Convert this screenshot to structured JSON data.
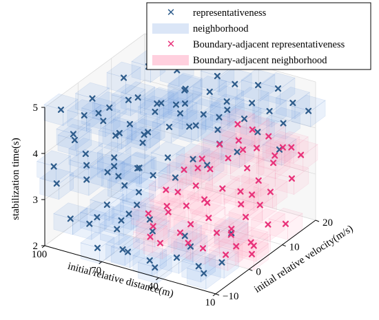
{
  "chart_data": {
    "type": "scatter",
    "projection": "3d",
    "axes": {
      "x": {
        "label": "initial relative distance(m)",
        "range": [
          10,
          100
        ],
        "ticks": [
          "100",
          "70",
          "40",
          "10"
        ]
      },
      "y": {
        "label": "initial relative velocity(m/s)",
        "range": [
          -10,
          20
        ],
        "ticks": [
          "-10",
          "0",
          "10",
          "20"
        ]
      },
      "z": {
        "label": "stabilization time(s)",
        "range": [
          2,
          5
        ],
        "ticks": [
          "2",
          "3",
          "4",
          "5"
        ]
      }
    },
    "grid": true,
    "legend": {
      "placement": "top-right",
      "entries": [
        {
          "label": "representativeness",
          "marker": "x",
          "color": "#2f5d8c"
        },
        {
          "label": "neighborhood",
          "marker": "patch",
          "color": "#dbe6f7"
        },
        {
          "label": "Boundary-adjacent representativeness",
          "marker": "x",
          "color": "#e8337a"
        },
        {
          "label": "Boundary-adjacent neighborhood",
          "marker": "patch",
          "color": "#ffd0de"
        }
      ]
    },
    "colors": {
      "representativeness": "#2f5d8c",
      "neighborhood": "#7ea7e8",
      "boundary_representativeness": "#e8337a",
      "boundary_neighborhood": "#ffb0c8"
    },
    "series": [
      {
        "name": "representativeness",
        "points": [
          [
            95,
            -8,
            4.9
          ],
          [
            88,
            -5,
            4.7
          ],
          [
            80,
            -2,
            4.8
          ],
          [
            72,
            2,
            4.9
          ],
          [
            65,
            5,
            4.7
          ],
          [
            58,
            8,
            4.9
          ],
          [
            50,
            11,
            4.8
          ],
          [
            42,
            14,
            4.9
          ],
          [
            35,
            17,
            4.8
          ],
          [
            28,
            19,
            4.7
          ],
          [
            96,
            2,
            4.6
          ],
          [
            90,
            8,
            4.8
          ],
          [
            84,
            12,
            4.9
          ],
          [
            76,
            16,
            4.7
          ],
          [
            68,
            -7,
            4.6
          ],
          [
            60,
            -3,
            4.5
          ],
          [
            52,
            0,
            4.6
          ],
          [
            45,
            4,
            4.5
          ],
          [
            38,
            7,
            4.6
          ],
          [
            30,
            10,
            4.5
          ],
          [
            22,
            13,
            4.6
          ],
          [
            15,
            16,
            4.7
          ],
          [
            92,
            -6,
            4.3
          ],
          [
            85,
            -1,
            4.4
          ],
          [
            78,
            3,
            4.2
          ],
          [
            70,
            6,
            4.4
          ],
          [
            62,
            9,
            4.3
          ],
          [
            55,
            12,
            4.2
          ],
          [
            48,
            15,
            4.4
          ],
          [
            40,
            18,
            4.3
          ],
          [
            33,
            -9,
            4.2
          ],
          [
            25,
            -4,
            4.3
          ],
          [
            18,
            1,
            4.4
          ],
          [
            98,
            5,
            4.1
          ],
          [
            91,
            10,
            4.2
          ],
          [
            83,
            14,
            4.0
          ],
          [
            75,
            18,
            4.2
          ],
          [
            67,
            -8,
            4.0
          ],
          [
            59,
            -5,
            3.9
          ],
          [
            51,
            -1,
            4.0
          ],
          [
            43,
            2,
            3.9
          ],
          [
            36,
            6,
            4.1
          ],
          [
            97,
            -9,
            3.7
          ],
          [
            89,
            -4,
            3.8
          ],
          [
            81,
            0,
            3.6
          ],
          [
            73,
            4,
            3.8
          ],
          [
            65,
            -6,
            3.5
          ],
          [
            57,
            -2,
            3.6
          ],
          [
            94,
            9,
            3.5
          ],
          [
            86,
            13,
            3.4
          ],
          [
            99,
            -7,
            3.2
          ],
          [
            92,
            -2,
            3.1
          ],
          [
            84,
            3,
            3.0
          ],
          [
            76,
            -5,
            2.9
          ],
          [
            68,
            0,
            3.0
          ],
          [
            95,
            6,
            2.8
          ],
          [
            88,
            11,
            2.7
          ],
          [
            80,
            -8,
            2.6
          ],
          [
            72,
            -3,
            2.5
          ],
          [
            64,
            1,
            2.4
          ],
          [
            97,
            -4,
            2.3
          ],
          [
            90,
            0,
            2.2
          ],
          [
            82,
            5,
            2.1
          ],
          [
            74,
            -9,
            2.2
          ],
          [
            66,
            -6,
            2.1
          ],
          [
            58,
            -9,
            2.3
          ],
          [
            50,
            -7,
            2.1
          ],
          [
            42,
            -10,
            2.2
          ],
          [
            34,
            -8,
            2.4
          ],
          [
            26,
            -6,
            2.2
          ],
          [
            18,
            -9,
            2.3
          ],
          [
            12,
            -7,
            2.5
          ],
          [
            14,
            -3,
            2.9
          ],
          [
            20,
            16,
            4.2
          ],
          [
            12,
            19,
            4.4
          ],
          [
            15,
            12,
            3.9
          ],
          [
            60,
            19,
            4.6
          ],
          [
            70,
            15,
            4.1
          ],
          [
            80,
            18,
            3.8
          ],
          [
            55,
            -8,
            3.3
          ],
          [
            45,
            -9,
            2.9
          ],
          [
            35,
            -5,
            2.7
          ],
          [
            25,
            -9,
            2.8
          ],
          [
            86,
            -9,
            4.4
          ],
          [
            78,
            -10,
            4.0
          ],
          [
            66,
            14,
            3.7
          ],
          [
            53,
            18,
            4.0
          ],
          [
            44,
            10,
            4.1
          ],
          [
            30,
            14,
            4.0
          ],
          [
            62,
            -10,
            2.8
          ]
        ]
      },
      {
        "name": "Boundary-adjacent representativeness",
        "points": [
          [
            40,
            14,
            3.7
          ],
          [
            34,
            16,
            3.5
          ],
          [
            28,
            18,
            3.3
          ],
          [
            22,
            17,
            3.6
          ],
          [
            16,
            19,
            3.4
          ],
          [
            12,
            14,
            3.2
          ],
          [
            18,
            11,
            3.0
          ],
          [
            26,
            12,
            3.1
          ],
          [
            32,
            10,
            2.9
          ],
          [
            38,
            8,
            3.0
          ],
          [
            44,
            6,
            2.8
          ],
          [
            50,
            4,
            2.7
          ],
          [
            56,
            2,
            2.6
          ],
          [
            62,
            5,
            2.5
          ],
          [
            48,
            10,
            3.2
          ],
          [
            42,
            12,
            3.4
          ],
          [
            36,
            13,
            3.6
          ],
          [
            30,
            9,
            2.7
          ],
          [
            24,
            7,
            2.6
          ],
          [
            20,
            9,
            2.8
          ],
          [
            14,
            8,
            2.5
          ],
          [
            10,
            11,
            2.4
          ],
          [
            52,
            8,
            2.9
          ],
          [
            58,
            6,
            2.8
          ],
          [
            46,
            3,
            2.4
          ],
          [
            40,
            5,
            2.5
          ],
          [
            34,
            4,
            2.3
          ],
          [
            28,
            5,
            2.4
          ],
          [
            22,
            3,
            2.2
          ],
          [
            16,
            4,
            2.3
          ],
          [
            12,
            2,
            2.2
          ],
          [
            54,
            11,
            3.3
          ],
          [
            60,
            9,
            3.1
          ],
          [
            66,
            7,
            2.7
          ],
          [
            70,
            4,
            2.3
          ],
          [
            64,
            2,
            2.2
          ],
          [
            44,
            16,
            3.9
          ],
          [
            38,
            17,
            3.8
          ],
          [
            26,
            15,
            3.9
          ],
          [
            20,
            13,
            3.5
          ],
          [
            30,
            6,
            2.2
          ],
          [
            36,
            1,
            2.1
          ],
          [
            42,
            0,
            2.2
          ],
          [
            48,
            1,
            2.3
          ],
          [
            55,
            -1,
            2.1
          ],
          [
            18,
            6,
            2.1
          ],
          [
            24,
            1,
            2.1
          ],
          [
            14,
            15,
            3.8
          ],
          [
            50,
            14,
            3.5
          ],
          [
            58,
            12,
            3.0
          ],
          [
            32,
            12,
            3.3
          ],
          [
            46,
            8,
            2.6
          ],
          [
            26,
            10,
            2.9
          ],
          [
            62,
            0,
            2.1
          ]
        ]
      }
    ]
  }
}
